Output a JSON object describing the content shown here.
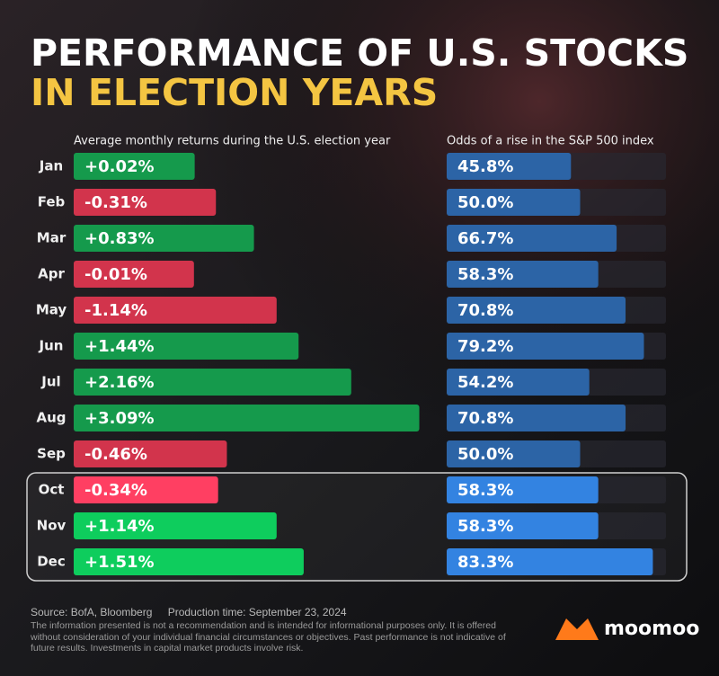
{
  "header": {
    "title": "PERFORMANCE OF U.S. STOCKS",
    "title_highlight": "IN ELECTION YEARS"
  },
  "chart_data": [
    {
      "type": "bar",
      "orientation": "horizontal",
      "subtitle": "Average monthly returns during the U.S. election year",
      "categories": [
        "Jan",
        "Feb",
        "Mar",
        "Apr",
        "May",
        "Jun",
        "Jul",
        "Aug",
        "Sep",
        "Oct",
        "Nov",
        "Dec"
      ],
      "values": [
        0.02,
        -0.31,
        0.83,
        -0.01,
        -1.14,
        1.44,
        2.16,
        3.09,
        -0.46,
        -0.34,
        1.14,
        1.51
      ],
      "value_labels": [
        "+0.02%",
        "-0.31%",
        "+0.83%",
        "-0.01%",
        "-1.14%",
        "+1.44%",
        "+2.16%",
        "+3.09%",
        "-0.46%",
        "-0.34%",
        "+1.14%",
        "+1.51%"
      ],
      "positive_color": "#159a4c",
      "negative_color": "#d2344c"
    },
    {
      "type": "bar",
      "orientation": "horizontal",
      "subtitle": "Odds of a rise in the S&P 500 index",
      "values": [
        45.8,
        50.0,
        66.7,
        58.3,
        70.8,
        79.2,
        54.2,
        70.8,
        50.0,
        58.3,
        58.3,
        83.3
      ],
      "value_labels": [
        "45.8%",
        "50.0%",
        "66.7%",
        "58.3%",
        "70.8%",
        "79.2%",
        "54.2%",
        "70.8%",
        "50.0%",
        "58.3%",
        "58.3%",
        "83.3%"
      ],
      "color": "#2c64a6"
    }
  ],
  "footer": {
    "source": "Source: BofA, Bloomberg",
    "production": "Production time: September 23, 2024",
    "disclaimer": "The information presented is not a recommendation and is intended for informational purposes only. It is offered without consideration of your individual financial circumstances or objectives. Past performance is not indicative of future results. Investments in capital market products involve risk."
  },
  "brand": "moomoo"
}
